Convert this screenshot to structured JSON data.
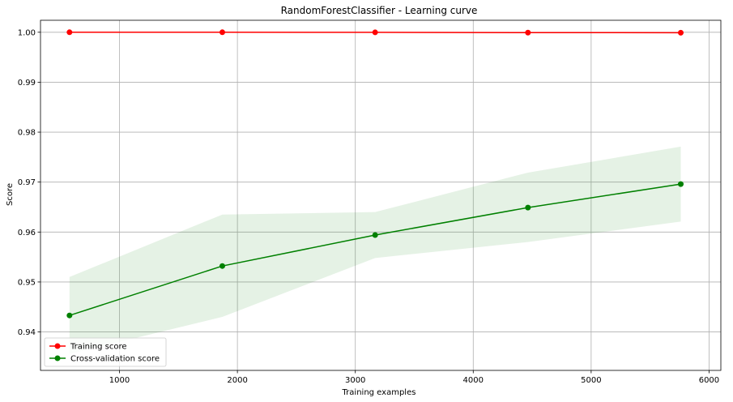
{
  "chart_data": {
    "type": "line",
    "title": "RandomForestClassifier - Learning curve",
    "xlabel": "Training examples",
    "ylabel": "Score",
    "xlim": [
      330,
      6100
    ],
    "ylim": [
      0.9323,
      1.0024
    ],
    "xticks": [
      1000,
      2000,
      3000,
      4000,
      5000,
      6000
    ],
    "xtick_labels": [
      "1000",
      "2000",
      "3000",
      "4000",
      "5000",
      "6000"
    ],
    "yticks": [
      0.94,
      0.95,
      0.96,
      0.97,
      0.98,
      0.99,
      1.0
    ],
    "ytick_labels": [
      "0.94",
      "0.95",
      "0.96",
      "0.97",
      "0.98",
      "0.99",
      "1.00"
    ],
    "grid": true,
    "legend_position": "lower-left",
    "x": [
      576,
      1872,
      3168,
      4464,
      5760
    ],
    "series": [
      {
        "name": "Training score",
        "color": "#ff0000",
        "values": [
          1.0,
          1.0,
          0.99998,
          0.99993,
          0.99991
        ],
        "band_lower": [
          1.0,
          1.0,
          0.99995,
          0.9998,
          0.9998
        ],
        "band_upper": [
          1.0,
          1.0,
          1.0,
          1.0,
          1.0
        ]
      },
      {
        "name": "Cross-validation score",
        "color": "#008000",
        "values": [
          0.9433,
          0.9532,
          0.9594,
          0.9649,
          0.9696
        ],
        "band_lower": [
          0.9356,
          0.943,
          0.9548,
          0.958,
          0.9621
        ],
        "band_upper": [
          0.951,
          0.9635,
          0.964,
          0.9719,
          0.9771
        ]
      }
    ]
  }
}
